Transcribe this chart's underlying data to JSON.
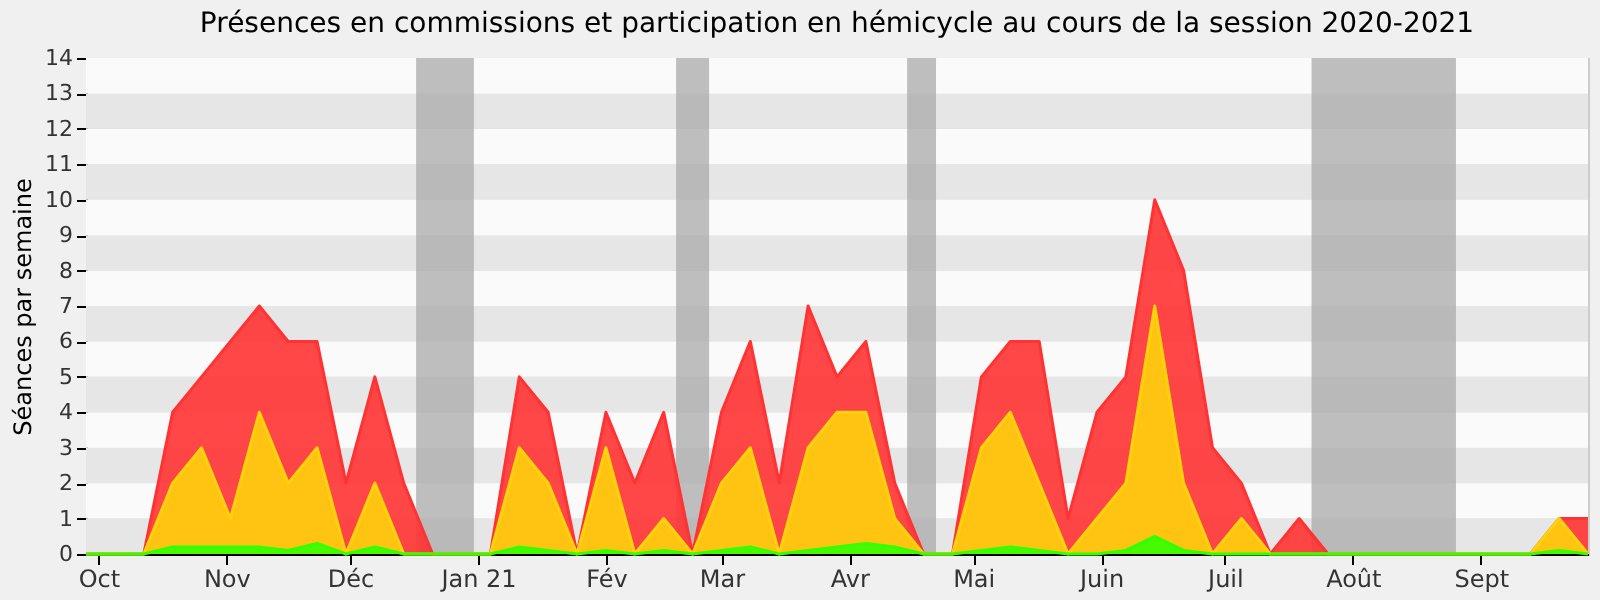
{
  "chart_data": {
    "type": "area",
    "title": "Présences en commissions et participation en hémicycle au cours de la session 2020-2021",
    "ylabel": "Séances par semaine",
    "x": [
      "2020-09-28",
      "2020-10-05",
      "2020-10-12",
      "2020-10-19",
      "2020-10-26",
      "2020-11-02",
      "2020-11-09",
      "2020-11-16",
      "2020-11-23",
      "2020-11-30",
      "2020-12-07",
      "2020-12-14",
      "2020-12-21",
      "2020-12-28",
      "2021-01-04",
      "2021-01-11",
      "2021-01-18",
      "2021-01-25",
      "2021-02-01",
      "2021-02-08",
      "2021-02-15",
      "2021-02-22",
      "2021-03-01",
      "2021-03-08",
      "2021-03-15",
      "2021-03-22",
      "2021-03-29",
      "2021-04-05",
      "2021-04-12",
      "2021-04-19",
      "2021-04-26",
      "2021-05-03",
      "2021-05-10",
      "2021-05-17",
      "2021-05-24",
      "2021-05-31",
      "2021-06-07",
      "2021-06-14",
      "2021-06-21",
      "2021-06-28",
      "2021-07-05",
      "2021-07-12",
      "2021-07-19",
      "2021-07-26",
      "2021-08-02",
      "2021-08-09",
      "2021-08-16",
      "2021-08-23",
      "2021-08-30",
      "2021-09-06",
      "2021-09-13",
      "2021-09-20",
      "2021-09-27"
    ],
    "series": [
      {
        "color": "#ff3333",
        "values": [
          0,
          0,
          0,
          4,
          5,
          6,
          7,
          6,
          6,
          2,
          5,
          2,
          0,
          0,
          0,
          5,
          4,
          0,
          4,
          2,
          4,
          0,
          4,
          6,
          2,
          7,
          5,
          6,
          2,
          0,
          0,
          5,
          6,
          6,
          1,
          4,
          5,
          10,
          8,
          3,
          2,
          0,
          1,
          0,
          0,
          0,
          0,
          0,
          0,
          0,
          0,
          1,
          1
        ]
      },
      {
        "color": "#ffd20c",
        "values": [
          0,
          0,
          0,
          2,
          3,
          1,
          4,
          2,
          3,
          0,
          2,
          0,
          0,
          0,
          0,
          3,
          2,
          0,
          3,
          0,
          1,
          0,
          2,
          3,
          0,
          3,
          4,
          4,
          1,
          0,
          0,
          3,
          4,
          2,
          0,
          1,
          2,
          7,
          2,
          0,
          1,
          0,
          0,
          0,
          0,
          0,
          0,
          0,
          0,
          0,
          0,
          1,
          0
        ]
      },
      {
        "color": "#33ff00",
        "values": [
          0,
          0,
          0,
          0.2,
          0.2,
          0.2,
          0.2,
          0.1,
          0.3,
          0,
          0.2,
          0,
          0,
          0,
          0,
          0.2,
          0.1,
          0,
          0.1,
          0,
          0.1,
          0,
          0.1,
          0.2,
          0,
          0.1,
          0.2,
          0.3,
          0.2,
          0,
          0,
          0.1,
          0.2,
          0.1,
          0,
          0,
          0.1,
          0.5,
          0.1,
          0,
          0,
          0,
          0,
          0,
          0,
          0,
          0,
          0,
          0,
          0,
          0,
          0.1,
          0
        ]
      }
    ],
    "xlim": [
      "2020-09-28",
      "2021-09-27"
    ],
    "xticks": [
      {
        "value": "2020-10-01",
        "label": "Oct"
      },
      {
        "value": "2020-11-01",
        "label": "Nov"
      },
      {
        "value": "2020-12-01",
        "label": "Déc"
      },
      {
        "value": "2021-01-01",
        "label": "Jan 21"
      },
      {
        "value": "2021-02-01",
        "label": "Fév"
      },
      {
        "value": "2021-03-01",
        "label": "Mar"
      },
      {
        "value": "2021-04-01",
        "label": "Avr"
      },
      {
        "value": "2021-05-01",
        "label": "Mai"
      },
      {
        "value": "2021-06-01",
        "label": "Juin"
      },
      {
        "value": "2021-07-01",
        "label": "Juil"
      },
      {
        "value": "2021-08-01",
        "label": "Août"
      },
      {
        "value": "2021-09-01",
        "label": "Sept"
      }
    ],
    "ylim": [
      0,
      14
    ],
    "yticks": [
      0,
      1,
      2,
      3,
      4,
      5,
      6,
      7,
      8,
      9,
      10,
      11,
      12,
      13,
      14
    ],
    "bands": [
      {
        "axis": "x",
        "from": "2020-12-17",
        "to": "2020-12-31",
        "color": "#aaaaaa"
      },
      {
        "axis": "x",
        "from": "2021-02-18",
        "to": "2021-02-26",
        "color": "#aaaaaa"
      },
      {
        "axis": "x",
        "from": "2021-04-15",
        "to": "2021-04-22",
        "color": "#aaaaaa"
      },
      {
        "axis": "x",
        "from": "2021-07-22",
        "to": "2021-08-26",
        "color": "#aaaaaa"
      }
    ],
    "grid": "y"
  }
}
